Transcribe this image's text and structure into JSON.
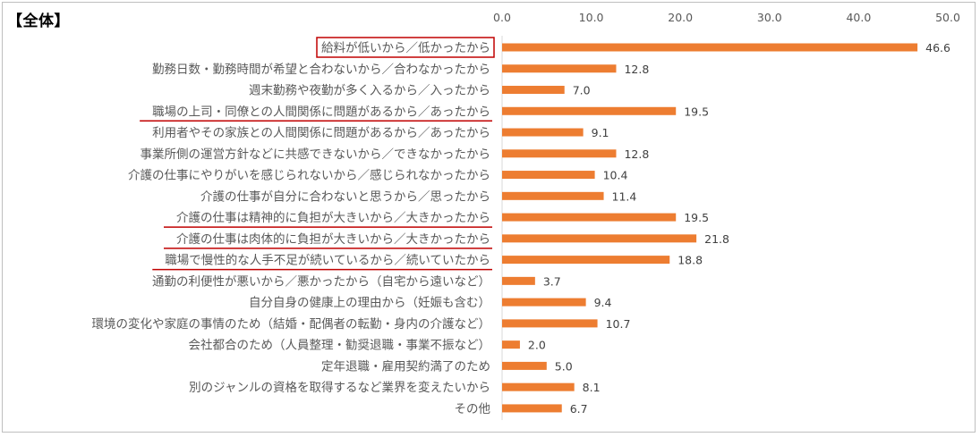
{
  "title": "【全体】",
  "chart_data": {
    "type": "bar",
    "orientation": "horizontal",
    "title": "",
    "xlabel": "",
    "ylabel": "",
    "xlim": [
      0,
      50
    ],
    "ticks": [
      "0.0",
      "10.0",
      "20.0",
      "30.0",
      "40.0",
      "50.0"
    ],
    "tick_values": [
      0,
      10,
      20,
      30,
      40,
      50
    ],
    "axis_position": "top",
    "grid": false,
    "bar_color": "#ED7D31",
    "highlight_box_color": "#C00000",
    "categories": [
      "給料が低いから／低かったから",
      "勤務日数・勤務時間が希望と合わないから／合わなかったから",
      "週末勤務や夜勤が多く入るから／入ったから",
      "職場の上司・同僚との人間関係に問題があるから／あったから",
      "利用者やその家族との人間関係に問題があるから／あったから",
      "事業所側の運営方針などに共感できないから／できなかったから",
      "介護の仕事にやりがいを感じられないから／感じられなかったから",
      "介護の仕事が自分に合わないと思うから／思ったから",
      "介護の仕事は精神的に負担が大きいから／大きかったから",
      "介護の仕事は肉体的に負担が大きいから／大きかったから",
      "職場で慢性的な人手不足が続いているから／続いていたから",
      "通勤の利便性が悪いから／悪かったから（自宅から遠いなど）",
      "自分自身の健康上の理由から（妊娠も含む）",
      "環境の変化や家庭の事情のため（結婚・配偶者の転勤・身内の介護など）",
      "会社都合のため（人員整理・勧奨退職・事業不振など）",
      "定年退職・雇用契約満了のため",
      "別のジャンルの資格を取得するなど業界を変えたいから",
      "その他"
    ],
    "values": [
      46.6,
      12.8,
      7.0,
      19.5,
      9.1,
      12.8,
      10.4,
      11.4,
      19.5,
      21.8,
      18.8,
      3.7,
      9.4,
      10.7,
      2.0,
      5.0,
      8.1,
      6.7
    ],
    "value_labels": [
      "46.6",
      "12.8",
      "7.0",
      "19.5",
      "9.1",
      "12.8",
      "10.4",
      "11.4",
      "19.5",
      "21.8",
      "18.8",
      "3.7",
      "9.4",
      "10.7",
      "2.0",
      "5.0",
      "8.1",
      "6.7"
    ],
    "annotations": {
      "boxed_categories": [
        0
      ],
      "underlined_categories": [
        3,
        8,
        9,
        10
      ]
    }
  }
}
